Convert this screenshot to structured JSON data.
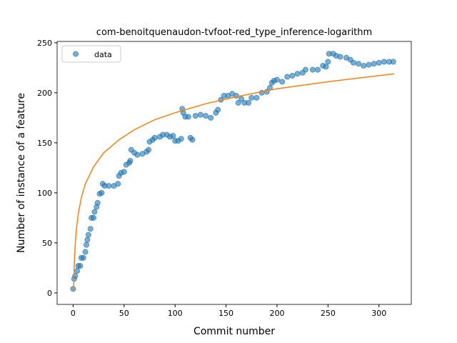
{
  "chart_data": {
    "type": "scatter",
    "title": "com-benoitquenaudon-tvfoot-red_type_inference-logarithm",
    "x_label": "Commit number",
    "y_label": "Number of instance of a feature",
    "xlim": [
      -15.7,
      331.7
    ],
    "ylim": [
      -11.5,
      251.3
    ],
    "xticks": [
      0,
      50,
      100,
      150,
      200,
      250,
      300
    ],
    "yticks": [
      0,
      50,
      100,
      150,
      200,
      250
    ],
    "legend": "upper left",
    "series": [
      {
        "name": "data",
        "color": "#1f77b4",
        "type": "scatter",
        "x": [
          0,
          1,
          2,
          4,
          5,
          7,
          8,
          10,
          12,
          13,
          14,
          15,
          17,
          18,
          20,
          21,
          23,
          24,
          26,
          28,
          29,
          31,
          35,
          40,
          44,
          45,
          47,
          50,
          52,
          55,
          56,
          57,
          60,
          63,
          68,
          72,
          74,
          75,
          78,
          80,
          85,
          88,
          92,
          95,
          98,
          100,
          103,
          106,
          107,
          108,
          110,
          113,
          115,
          117,
          120,
          125,
          130,
          135,
          140,
          142,
          145,
          148,
          152,
          156,
          160,
          162,
          165,
          168,
          172,
          175,
          180,
          185,
          190,
          193,
          195,
          197,
          200,
          205,
          210,
          215,
          220,
          225,
          228,
          235,
          240,
          245,
          248,
          250,
          251,
          255,
          258,
          262,
          268,
          272,
          275,
          280,
          285,
          290,
          295,
          300,
          305,
          310,
          314
        ],
        "values": [
          4,
          14,
          17,
          22,
          27,
          27,
          35,
          35,
          41,
          48,
          53,
          58,
          64,
          75,
          75,
          81,
          86,
          90,
          99,
          100,
          109,
          107,
          107,
          107,
          109,
          117,
          120,
          121,
          128,
          130,
          132,
          143,
          140,
          138,
          139,
          141,
          143,
          151,
          153,
          155,
          156,
          158,
          158,
          156,
          157,
          152,
          152,
          154,
          184,
          180,
          176,
          176,
          155,
          153,
          177,
          178,
          177,
          175,
          180,
          183,
          193,
          197,
          197,
          199,
          197,
          190,
          194,
          190,
          190,
          195,
          195,
          200,
          201,
          205,
          210,
          212,
          213,
          211,
          216,
          217,
          219,
          220,
          223,
          223,
          223,
          227,
          226,
          231,
          239,
          239,
          237,
          236,
          235,
          233,
          230,
          229,
          227,
          228,
          229,
          230,
          231,
          231,
          231
        ]
      },
      {
        "color": "#ff7f0e",
        "type": "line",
        "x": [
          0.5,
          1,
          2,
          3,
          5,
          8,
          12,
          20,
          30,
          45,
          60,
          80,
          100,
          130,
          160,
          200,
          250,
          315
        ],
        "values": [
          2,
          25,
          48,
          62,
          79,
          95,
          109,
          126,
          140,
          153,
          163,
          173,
          180,
          189,
          196,
          204,
          211,
          219
        ]
      }
    ]
  }
}
